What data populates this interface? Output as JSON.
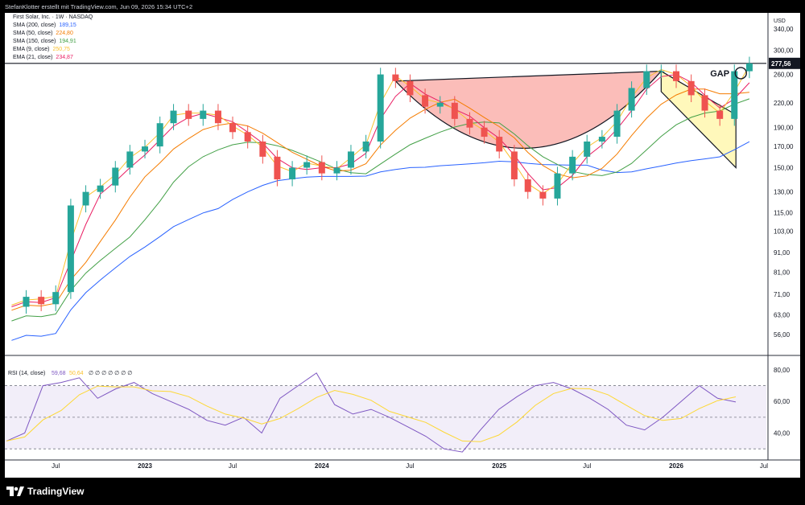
{
  "header": {
    "author_line": "StefanKlotter erstellt mit TradingView.com, Jun 09, 2026 15:34 UTC+2"
  },
  "legend": {
    "title": "First Solar, Inc. · 1W · NASDAQ",
    "items": [
      {
        "label": "SMA (200, close)",
        "value": "189,15",
        "color": "#2962ff"
      },
      {
        "label": "SMA (50, close)",
        "value": "224,80",
        "color": "#f57c00"
      },
      {
        "label": "SMA (150, close)",
        "value": "194,91",
        "color": "#43a047"
      },
      {
        "label": "EMA (9, close)",
        "value": "250,75",
        "color": "#fbc02d"
      },
      {
        "label": "EMA (21, close)",
        "value": "234,87",
        "color": "#e91e63"
      }
    ]
  },
  "footer": {
    "brand": "TradingView"
  },
  "chart_data": [
    {
      "type": "candlestick",
      "title": "First Solar, Inc. · 1W · NASDAQ",
      "currency_label": "USD",
      "y_scale": "log",
      "ylim": [
        50,
        360
      ],
      "x_ticks": [
        "Jul",
        "2023",
        "Jul",
        "2024",
        "Jul",
        "2025",
        "Jul",
        "2026",
        "Jul"
      ],
      "y_ticks": [
        56,
        63,
        71,
        81,
        91,
        103,
        115,
        130,
        150,
        170,
        190,
        220,
        260,
        300,
        340
      ],
      "y_tick_labels": [
        "56,00",
        "63,00",
        "71,00",
        "81,00",
        "91,00",
        "103,00",
        "115,00",
        "130,00",
        "150,00",
        "170,00",
        "190,00",
        "220,00",
        "260,00",
        "300,00",
        "340,00"
      ],
      "last_price": 277.56,
      "last_price_label": "277,56",
      "resistance": 277.56,
      "annotations": [
        "GAP"
      ],
      "close_path": [
        [
          "2022-04",
          66
        ],
        [
          "2022-05",
          70
        ],
        [
          "2022-06",
          67
        ],
        [
          "2022-07",
          72
        ],
        [
          "2022-08",
          120
        ],
        [
          "2022-09",
          130
        ],
        [
          "2022-10",
          135
        ],
        [
          "2022-11",
          150
        ],
        [
          "2022-12",
          165
        ],
        [
          "2023-01",
          170
        ],
        [
          "2023-02",
          195
        ],
        [
          "2023-03",
          210
        ],
        [
          "2023-04",
          200
        ],
        [
          "2023-05",
          210
        ],
        [
          "2023-06",
          195
        ],
        [
          "2023-07",
          185
        ],
        [
          "2023-08",
          175
        ],
        [
          "2023-09",
          160
        ],
        [
          "2023-10",
          140
        ],
        [
          "2023-11",
          150
        ],
        [
          "2023-12",
          155
        ],
        [
          "2024-01",
          145
        ],
        [
          "2024-02",
          150
        ],
        [
          "2024-03",
          165
        ],
        [
          "2024-04",
          175
        ],
        [
          "2024-05",
          260
        ],
        [
          "2024-06",
          250
        ],
        [
          "2024-07",
          230
        ],
        [
          "2024-08",
          215
        ],
        [
          "2024-09",
          220
        ],
        [
          "2024-10",
          200
        ],
        [
          "2024-11",
          190
        ],
        [
          "2024-12",
          180
        ],
        [
          "2025-01",
          165
        ],
        [
          "2025-02",
          140
        ],
        [
          "2025-03",
          130
        ],
        [
          "2025-04",
          125
        ],
        [
          "2025-05",
          145
        ],
        [
          "2025-06",
          160
        ],
        [
          "2025-07",
          175
        ],
        [
          "2025-08",
          180
        ],
        [
          "2025-09",
          210
        ],
        [
          "2025-10",
          240
        ],
        [
          "2025-11",
          265
        ],
        [
          "2025-12",
          265
        ],
        [
          "2026-01",
          250
        ],
        [
          "2026-02",
          230
        ],
        [
          "2026-03",
          210
        ],
        [
          "2026-04",
          200
        ],
        [
          "2026-05",
          265
        ],
        [
          "2026-06",
          277.56
        ]
      ]
    },
    {
      "type": "line",
      "title": "RSI (14, close)",
      "header_values": [
        "59,68",
        "50,64"
      ],
      "header_extra": "∅ ∅ ∅ ∅ ∅ ∅ ∅",
      "ylim": [
        25,
        82
      ],
      "y_ticks": [
        40,
        60,
        80
      ],
      "y_tick_labels": [
        "40,00",
        "60,00",
        "80,00"
      ],
      "bands": [
        30,
        50,
        70
      ],
      "series": [
        {
          "values": [
            35,
            40,
            70,
            72,
            75,
            62,
            68,
            72,
            65,
            60,
            55,
            48,
            45,
            50,
            40,
            62,
            70,
            78,
            58,
            52,
            55,
            50,
            44,
            38,
            30,
            28,
            42,
            55,
            63,
            70,
            72,
            68,
            62,
            55,
            45,
            42,
            50,
            60,
            70,
            62,
            59.68
          ]
        }
      ]
    }
  ]
}
